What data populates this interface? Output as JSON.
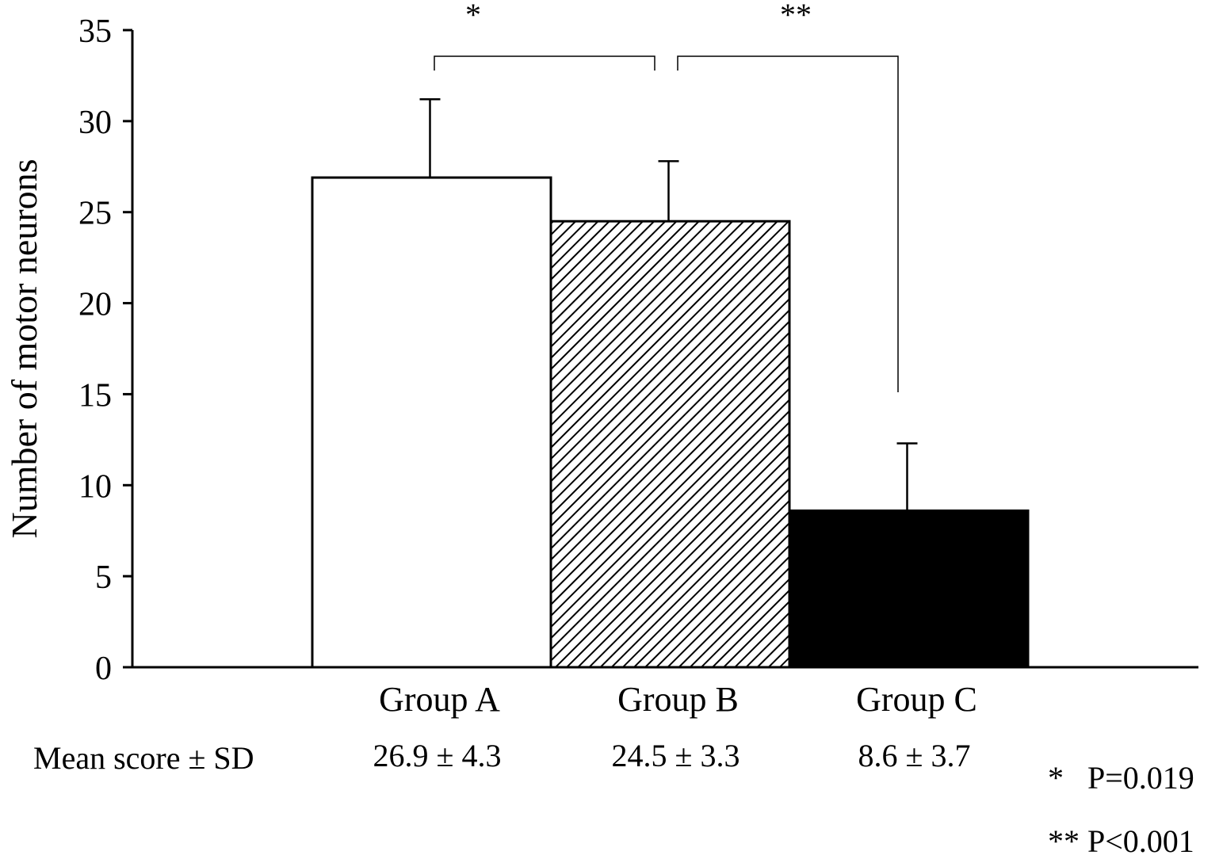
{
  "chart_data": {
    "type": "bar",
    "title": "",
    "xlabel": "",
    "ylabel": "Number of motor neurons",
    "ylim": [
      0,
      35
    ],
    "yticks": [
      0,
      5,
      10,
      15,
      20,
      25,
      30,
      35
    ],
    "grid": false,
    "legend": "none",
    "categories": [
      "Group A",
      "Group B",
      "Group C"
    ],
    "values": [
      26.9,
      24.5,
      8.6
    ],
    "errors": [
      4.3,
      3.3,
      3.7
    ],
    "bar_fills": [
      "white",
      "hatched",
      "black"
    ],
    "row_label": "Mean score ± SD",
    "value_labels": [
      "26.9 ± 4.3",
      "24.5 ± 3.3",
      "8.6 ± 3.7"
    ],
    "brackets": [
      {
        "from": 0,
        "to": 1,
        "top": 33.2,
        "mark": "*"
      },
      {
        "from": 1,
        "to": 2,
        "top": 33.2,
        "mark": "**"
      }
    ],
    "footnotes": [
      "*   P=0.019",
      "** P<0.001"
    ]
  }
}
